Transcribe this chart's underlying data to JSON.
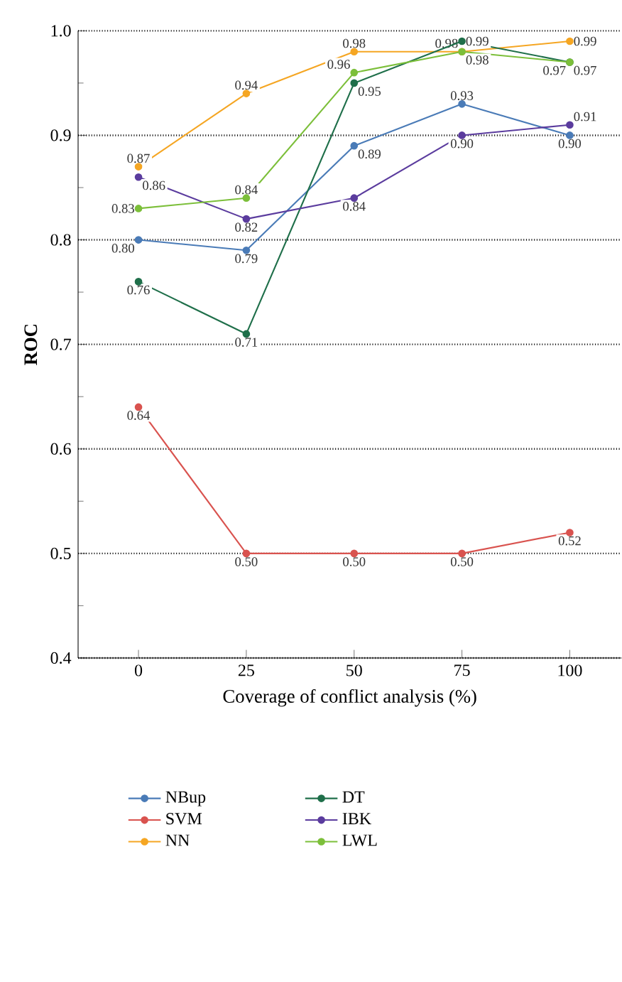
{
  "chart_data": {
    "type": "line",
    "xlabel": "Coverage of conflict analysis (%)",
    "ylabel": "ROC",
    "x": [
      0,
      25,
      50,
      75,
      100
    ],
    "xlim": [
      -14,
      112
    ],
    "xticks": [
      0,
      25,
      50,
      75,
      100
    ],
    "ylim": [
      0.4,
      1.0
    ],
    "yticks": [
      {
        "value": 0.4,
        "label": "0.4"
      },
      {
        "value": 0.5,
        "label": "0.5"
      },
      {
        "value": 0.6,
        "label": "0.6"
      },
      {
        "value": 0.7,
        "label": "0.7"
      },
      {
        "value": 0.8,
        "label": "0.8"
      },
      {
        "value": 0.9,
        "label": "0.9"
      },
      {
        "value": 1.0,
        "label": "1.0"
      }
    ],
    "grid": "y",
    "legend": "bottom",
    "marker": "circle",
    "series": [
      {
        "name": "NBup",
        "color": "#4a7bb7",
        "values": [
          0.8,
          0.79,
          0.89,
          0.93,
          0.9
        ],
        "value_labels": [
          "0.80",
          "0.79",
          "0.89",
          "0.93",
          "0.90"
        ]
      },
      {
        "name": "SVM",
        "color": "#d9534f",
        "values": [
          0.64,
          0.5,
          0.5,
          0.5,
          0.52
        ],
        "value_labels": [
          "0.64",
          "0.50",
          "0.50",
          "0.50",
          "0.52"
        ]
      },
      {
        "name": "NN",
        "color": "#f5a623",
        "values": [
          0.87,
          0.94,
          0.98,
          0.98,
          0.99
        ],
        "value_labels": [
          "0.87",
          "0.94",
          "0.98",
          "0.98",
          "0.99"
        ]
      },
      {
        "name": "DT",
        "color": "#1f6f4a",
        "values": [
          0.76,
          0.71,
          0.95,
          0.99,
          0.97
        ],
        "value_labels": [
          "0.76",
          "0.71",
          "0.95",
          "0.99",
          "0.97"
        ]
      },
      {
        "name": "IBK",
        "color": "#5b3c9e",
        "values": [
          0.86,
          0.82,
          0.84,
          0.9,
          0.91
        ],
        "value_labels": [
          "0.86",
          "0.82",
          "0.84",
          "0.90",
          "0.91"
        ]
      },
      {
        "name": "LWL",
        "color": "#7cbf3a",
        "values": [
          0.83,
          0.84,
          0.96,
          0.98,
          0.97
        ],
        "value_labels": [
          "0.83",
          "0.84",
          "0.96",
          "0.98",
          "0.97"
        ]
      }
    ]
  }
}
